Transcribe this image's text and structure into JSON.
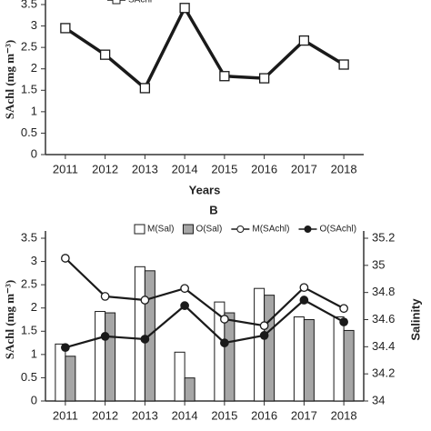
{
  "chart_data": [
    {
      "type": "line",
      "x_label": "Years",
      "y_label": "SAchl (mg m⁻³)",
      "categories": [
        "2011",
        "2012",
        "2013",
        "2014",
        "2015",
        "2016",
        "2017",
        "2018"
      ],
      "series": [
        {
          "name": "SAchl",
          "color": "#1a1a1a",
          "marker": "square",
          "values": [
            2.95,
            2.33,
            1.55,
            3.42,
            1.83,
            1.78,
            2.66,
            2.1
          ]
        }
      ],
      "ylim": [
        0,
        3.5
      ],
      "yticks": [
        0,
        0.5,
        1,
        1.5,
        2,
        2.5,
        3,
        3.5
      ]
    },
    {
      "type": "bar-line",
      "panel_label": "B",
      "y_label": "SAchl (mg m⁻³)",
      "y2_label": "Salinity",
      "categories": [
        "2011",
        "2012",
        "2013",
        "2014",
        "2015",
        "2016",
        "2017",
        "2018"
      ],
      "series": [
        {
          "name": "M(Sal)",
          "type": "bar",
          "axis": "y2",
          "color": "#ffffff",
          "values": [
            34.42,
            34.66,
            34.99,
            34.36,
            34.73,
            34.83,
            34.62,
            34.62
          ]
        },
        {
          "name": "O(Sal)",
          "type": "bar",
          "axis": "y2",
          "color": "#a6a6a6",
          "values": [
            34.33,
            34.65,
            34.96,
            34.17,
            34.65,
            34.78,
            34.6,
            34.52
          ]
        },
        {
          "name": "M(SAchl)",
          "type": "line",
          "color": "#ffffff",
          "marker": "circle",
          "values": [
            3.07,
            2.25,
            2.17,
            2.42,
            1.76,
            1.62,
            2.44,
            1.99
          ]
        },
        {
          "name": "O(SAchl)",
          "type": "line",
          "color": "#1a1a1a",
          "marker": "circle",
          "values": [
            1.15,
            1.39,
            1.33,
            2.05,
            1.25,
            1.41,
            2.17,
            1.7
          ]
        }
      ],
      "ylim": [
        0,
        3.5
      ],
      "yticks": [
        0,
        0.5,
        1,
        1.5,
        2,
        2.5,
        3,
        3.5
      ],
      "y2lim": [
        34,
        35.2
      ],
      "y2ticks": [
        34,
        34.2,
        34.4,
        34.6,
        34.8,
        35,
        35.2
      ]
    }
  ]
}
